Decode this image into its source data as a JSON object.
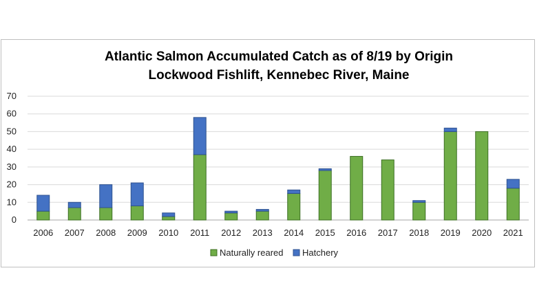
{
  "chart_data": {
    "type": "bar",
    "stacked": true,
    "title": "Atlantic Salmon Accumulated Catch as of 8/19 by Origin",
    "subtitle": "Lockwood Fishlift, Kennebec River, Maine",
    "xlabel": "",
    "ylabel": "",
    "categories": [
      "2006",
      "2007",
      "2008",
      "2009",
      "2010",
      "2011",
      "2012",
      "2013",
      "2014",
      "2015",
      "2016",
      "2017",
      "2018",
      "2019",
      "2020",
      "2021"
    ],
    "series": [
      {
        "name": "Naturally reared",
        "color": "#70ad47",
        "values": [
          5,
          7,
          7,
          8,
          2,
          37,
          4,
          5,
          15,
          28,
          36,
          34,
          10,
          50,
          50,
          18
        ]
      },
      {
        "name": "Hatchery",
        "color": "#4472c4",
        "values": [
          9,
          3,
          13,
          13,
          2,
          21,
          1,
          1,
          2,
          1,
          0,
          0,
          1,
          2,
          0,
          5
        ]
      }
    ],
    "ylim": [
      0,
      70
    ],
    "yticks": [
      0,
      10,
      20,
      30,
      40,
      50,
      60,
      70
    ],
    "grid": true,
    "legend": "bottom"
  }
}
